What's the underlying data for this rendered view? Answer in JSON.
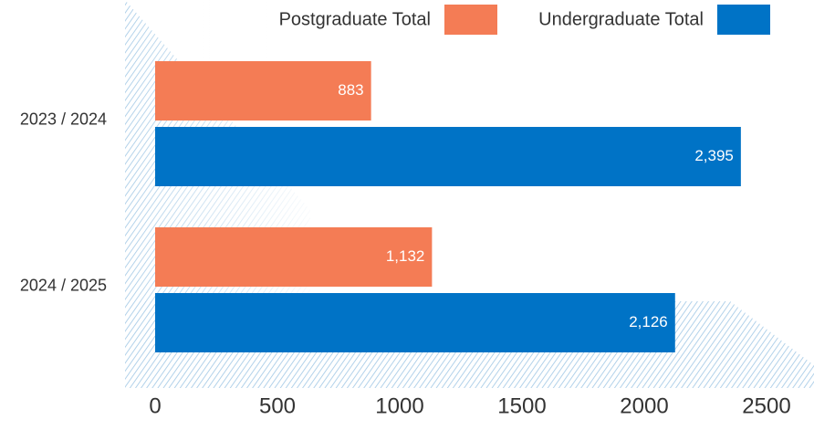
{
  "chart_data": {
    "type": "hbar",
    "categories": [
      "2023 / 2024",
      "2024 / 2025"
    ],
    "series": [
      {
        "name": "Postgraduate Total",
        "color": "#f47c55",
        "values": [
          883,
          1132
        ],
        "value_labels": [
          "883",
          "1,132"
        ]
      },
      {
        "name": "Undergraduate Total",
        "color": "#0073c6",
        "values": [
          2395,
          2126
        ],
        "value_labels": [
          "2,395",
          "2,126"
        ]
      }
    ],
    "xlim": [
      0,
      2500
    ],
    "xticks": [
      0,
      500,
      1000,
      1500,
      2000,
      2500
    ]
  }
}
